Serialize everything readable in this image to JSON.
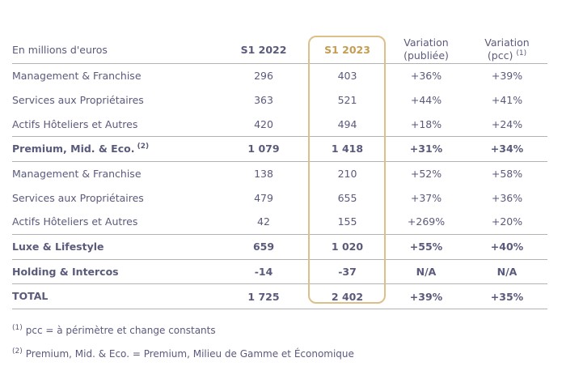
{
  "table": {
    "unit_label": "En millions d'euros",
    "headers": {
      "s1_2022": "S1 2022",
      "s1_2023": "S1 2023",
      "variation_publiee": {
        "line1": "Variation",
        "line2": "(publiée)"
      },
      "variation_pcc": {
        "line1": "Variation",
        "line2": "(pcc)",
        "sup": "(1)"
      }
    },
    "rows": [
      {
        "label": "Management & Franchise",
        "label_sup": "",
        "s1_2022": "296",
        "s1_2023": "403",
        "variation_publiee": "+36%",
        "variation_pcc": "+39%",
        "bold": false,
        "separator_below": false
      },
      {
        "label": "Services aux Propriétaires",
        "label_sup": "",
        "s1_2022": "363",
        "s1_2023": "521",
        "variation_publiee": "+44%",
        "variation_pcc": "+41%",
        "bold": false,
        "separator_below": false
      },
      {
        "label": "Actifs Hôteliers et Autres",
        "label_sup": "",
        "s1_2022": "420",
        "s1_2023": "494",
        "variation_publiee": "+18%",
        "variation_pcc": "+24%",
        "bold": false,
        "separator_below": true
      },
      {
        "label": "Premium, Mid. & Eco.",
        "label_sup": "(2)",
        "s1_2022": "1 079",
        "s1_2023": "1 418",
        "variation_publiee": "+31%",
        "variation_pcc": "+34%",
        "bold": true,
        "separator_below": true
      },
      {
        "label": "Management & Franchise",
        "label_sup": "",
        "s1_2022": "138",
        "s1_2023": "210",
        "variation_publiee": "+52%",
        "variation_pcc": "+58%",
        "bold": false,
        "separator_below": false
      },
      {
        "label": "Services aux Propriétaires",
        "label_sup": "",
        "s1_2022": "479",
        "s1_2023": "655",
        "variation_publiee": "+37%",
        "variation_pcc": "+36%",
        "bold": false,
        "separator_below": false
      },
      {
        "label": "Actifs Hôteliers et Autres",
        "label_sup": "",
        "s1_2022": "42",
        "s1_2023": "155",
        "variation_publiee": "+269%",
        "variation_pcc": "+20%",
        "bold": false,
        "separator_below": true
      },
      {
        "label": "Luxe & Lifestyle",
        "label_sup": "",
        "s1_2022": "659",
        "s1_2023": "1 020",
        "variation_publiee": "+55%",
        "variation_pcc": "+40%",
        "bold": true,
        "separator_below": true
      },
      {
        "label": "Holding & Intercos",
        "label_sup": "",
        "s1_2022": "-14",
        "s1_2023": "-37",
        "variation_publiee": "N/A",
        "variation_pcc": "N/A",
        "bold": true,
        "separator_below": true
      },
      {
        "label": "TOTAL",
        "label_sup": "",
        "s1_2022": "1 725",
        "s1_2023": "2 402",
        "variation_publiee": "+39%",
        "variation_pcc": "+35%",
        "bold": true,
        "separator_below": true
      }
    ]
  },
  "footnotes": [
    {
      "marker": "(1)",
      "text": "pcc = à périmètre et change constants"
    },
    {
      "marker": "(2)",
      "text": "Premium, Mid. & Eco. = Premium, Milieu de Gamme et Économique"
    }
  ],
  "colors": {
    "text": "#5a5a7c",
    "accent_gold": "#c69c52",
    "highlight_border": "#ddbf8a",
    "rule_gray": "#b2b2b4"
  }
}
